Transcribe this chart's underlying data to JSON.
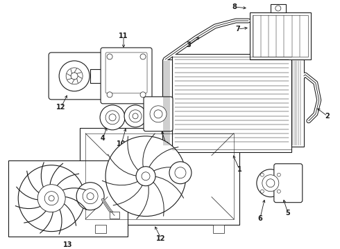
{
  "bg_color": "#ffffff",
  "line_color": "#1a1a1a",
  "fig_width": 4.9,
  "fig_height": 3.6,
  "dpi": 100
}
